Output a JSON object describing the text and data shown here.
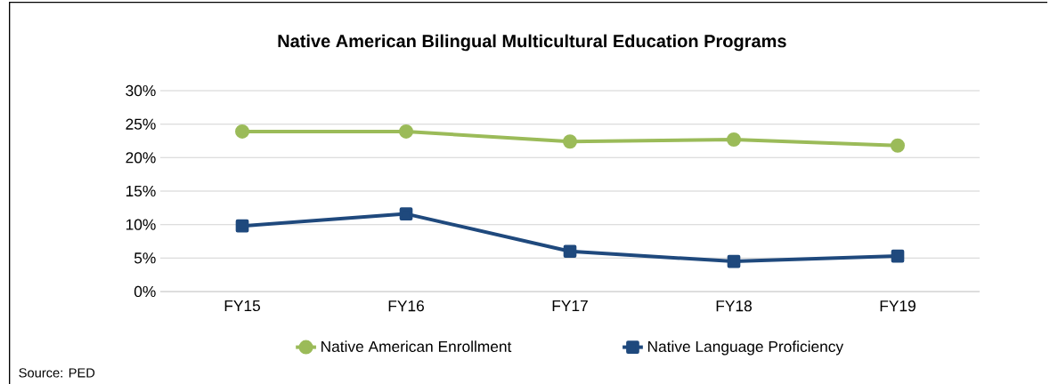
{
  "chart_data": {
    "type": "line",
    "title": "Native American Bilingual Multicultural Education Programs",
    "categories": [
      "FY15",
      "FY16",
      "FY17",
      "FY18",
      "FY19"
    ],
    "series": [
      {
        "name": "Native American Enrollment",
        "color": "#9bbb59",
        "marker": "circle",
        "values": [
          23.9,
          23.9,
          22.4,
          22.7,
          21.8
        ]
      },
      {
        "name": "Native Language Proficiency",
        "color": "#1f497d",
        "marker": "square",
        "values": [
          9.8,
          11.6,
          6.0,
          4.5,
          5.3
        ]
      }
    ],
    "ylim": [
      0,
      30
    ],
    "yticks": [
      {
        "value": 0,
        "label": "0%"
      },
      {
        "value": 5,
        "label": "5%"
      },
      {
        "value": 10,
        "label": "10%"
      },
      {
        "value": 15,
        "label": "15%"
      },
      {
        "value": 20,
        "label": "20%"
      },
      {
        "value": 25,
        "label": "25%"
      },
      {
        "value": 30,
        "label": "30%"
      }
    ],
    "grid": "y",
    "legend": "bottom",
    "line_style": "solid",
    "annotations": [
      "Source: PED"
    ]
  }
}
